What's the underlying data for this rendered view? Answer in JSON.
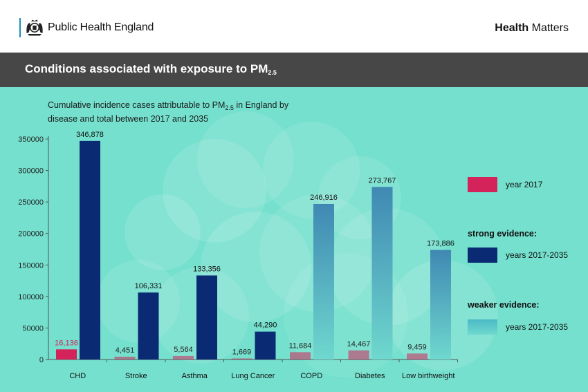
{
  "header": {
    "org_name": "Public Health England",
    "brand_bold": "Health",
    "brand_light": "Matters",
    "crest_icon": "royal-crest-icon"
  },
  "banner": {
    "title": "Conditions associated with exposure to PM",
    "title_sub": "2.5"
  },
  "colors": {
    "bg": "#74e0cd",
    "year_2017": "#d4235a",
    "strong": "#0b2a74",
    "weaker": "#5fc4c9"
  },
  "legend": {
    "year_label": "year 2017",
    "strong_heading": "strong evidence:",
    "strong_label": "years 2017-2035",
    "weaker_heading": "weaker evidence:",
    "weaker_label": "years 2017-2035"
  },
  "chart_data": {
    "type": "bar",
    "title_line1": "Cumulative incidence cases attributable to PM",
    "title_sub": "2.5",
    "title_line1_end": " in England by",
    "title_line2": "disease and total between 2017 and 2035",
    "categories": [
      "CHD",
      "Stroke",
      "Asthma",
      "Lung Cancer",
      "COPD",
      "Diabetes",
      "Low birthweight"
    ],
    "ylim": [
      0,
      350000
    ],
    "yticks": [
      0,
      50000,
      100000,
      150000,
      200000,
      250000,
      300000,
      350000
    ],
    "series": [
      {
        "name": "year 2017",
        "values": [
          16136,
          4451,
          5564,
          1669,
          11684,
          14467,
          9459
        ],
        "labels": [
          "16,136",
          "4,451",
          "5,564",
          "1,669",
          "11,684",
          "14,467",
          "9,459"
        ]
      },
      {
        "name": "years 2017-2035",
        "values": [
          346878,
          106331,
          133356,
          44290,
          246916,
          273767,
          173886
        ],
        "labels": [
          "346,878",
          "106,331",
          "133,356",
          "44,290",
          "246,916",
          "273,767",
          "173,886"
        ],
        "evidence": [
          "strong",
          "strong",
          "strong",
          "strong",
          "weaker",
          "weaker",
          "weaker"
        ]
      }
    ]
  }
}
